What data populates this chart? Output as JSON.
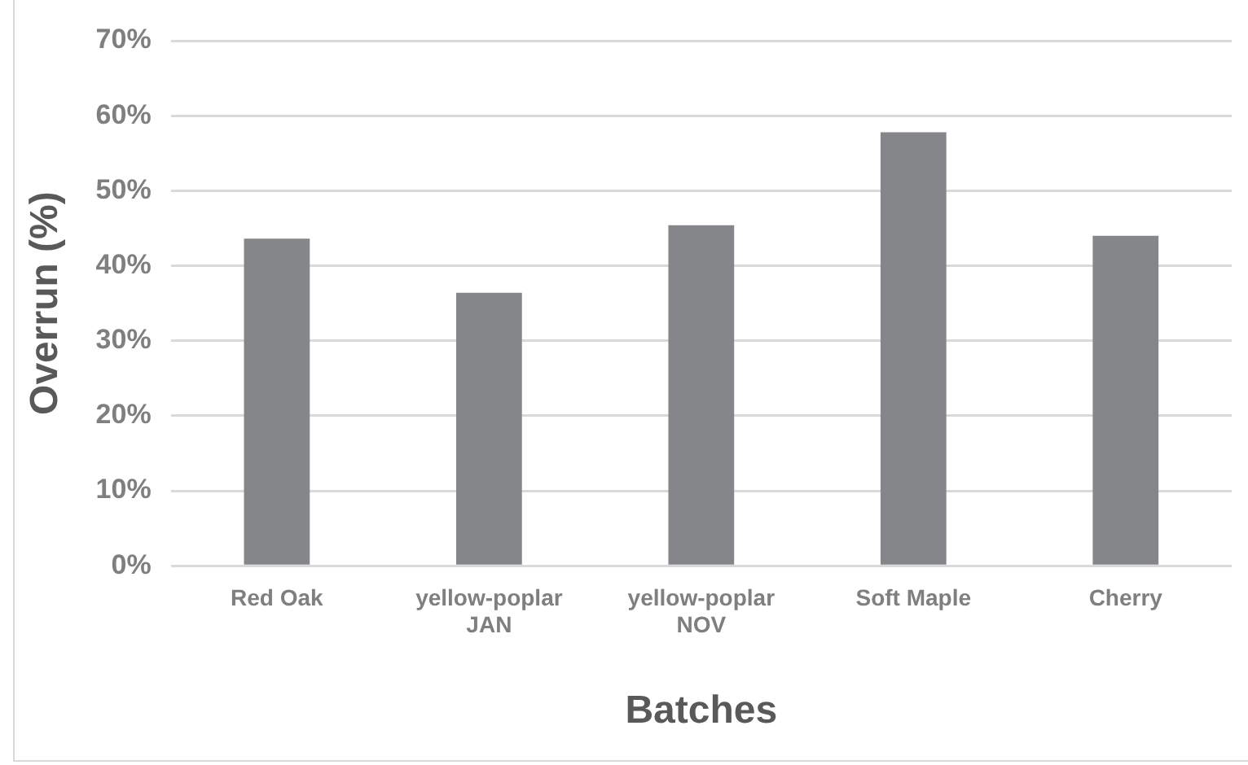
{
  "chart_data": {
    "type": "bar",
    "xlabel": "Batches",
    "ylabel": "Overrun (%)",
    "categories": [
      "Red Oak",
      "yellow-poplar\nJAN",
      "yellow-poplar\nNOV",
      "Soft Maple",
      "Cherry"
    ],
    "values": [
      43.6,
      36.4,
      45.4,
      57.8,
      44.0
    ],
    "color": "#858689",
    "ylim": [
      0,
      70
    ],
    "yticks": [
      {
        "value": 0,
        "label": "0%"
      },
      {
        "value": 10,
        "label": "10%"
      },
      {
        "value": 20,
        "label": "20%"
      },
      {
        "value": 30,
        "label": "30%"
      },
      {
        "value": 40,
        "label": "40%"
      },
      {
        "value": 50,
        "label": "50%"
      },
      {
        "value": 60,
        "label": "60%"
      },
      {
        "value": 70,
        "label": "70%"
      }
    ],
    "grid": "y",
    "legend": false
  }
}
